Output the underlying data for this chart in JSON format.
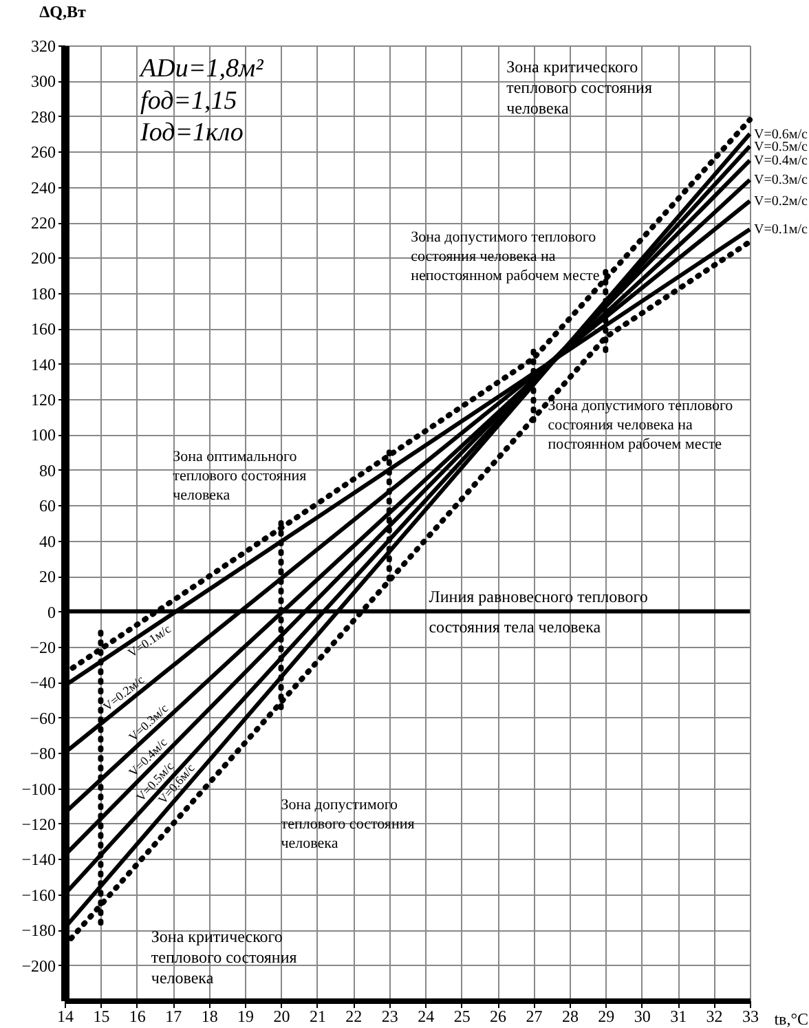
{
  "chart_data": {
    "type": "line",
    "xlabel": "tв,°C",
    "ylabel": "ΔQ,Вт",
    "xlim": [
      14,
      33
    ],
    "xticks": [
      14,
      15,
      16,
      17,
      18,
      19,
      20,
      21,
      22,
      23,
      24,
      25,
      26,
      27,
      28,
      29,
      30,
      31,
      32,
      33
    ],
    "ylim": [
      -220,
      320
    ],
    "yticks": [
      -200,
      -180,
      -160,
      -140,
      -120,
      -100,
      -80,
      -60,
      -40,
      -20,
      0,
      20,
      40,
      60,
      80,
      100,
      120,
      140,
      160,
      180,
      200,
      220,
      240,
      260,
      280,
      300,
      320
    ],
    "grid": true,
    "legend": false,
    "line_style": "solid",
    "series": [
      {
        "name": "V=0.1м/с",
        "color": "#000000",
        "x": [
          14,
          33
        ],
        "values": [
          -42,
          216
        ]
      },
      {
        "name": "V=0.2м/с",
        "color": "#000000",
        "x": [
          14,
          33
        ],
        "values": [
          -80,
          232
        ]
      },
      {
        "name": "V=0.3м/с",
        "color": "#000000",
        "x": [
          14,
          33
        ],
        "values": [
          -114,
          244
        ]
      },
      {
        "name": "V=0.4м/с",
        "color": "#000000",
        "x": [
          14,
          33
        ],
        "values": [
          -138,
          255
        ]
      },
      {
        "name": "V=0.5м/с",
        "color": "#000000",
        "x": [
          14,
          33
        ],
        "values": [
          -160,
          263
        ]
      },
      {
        "name": "V=0.6м/с",
        "color": "#000000",
        "x": [
          14,
          33
        ],
        "values": [
          -179,
          270
        ]
      },
      {
        "color": "#000000",
        "line_style": "dotted",
        "x": [
          14,
          27,
          33
        ],
        "values": [
          -35,
          143,
          278
        ]
      },
      {
        "color": "#000000",
        "line_style": "dotted",
        "x": [
          14,
          29,
          33
        ],
        "values": [
          -189,
          155,
          209
        ]
      },
      {
        "color": "#000000",
        "line_style": "dotted",
        "x": [
          15,
          15
        ],
        "values": [
          -12,
          -180
        ]
      },
      {
        "color": "#000000",
        "line_style": "dotted",
        "x": [
          20,
          20
        ],
        "values": [
          50,
          -55
        ]
      },
      {
        "color": "#000000",
        "line_style": "dotted",
        "x": [
          23,
          23
        ],
        "values": [
          90,
          15
        ]
      },
      {
        "color": "#000000",
        "line_style": "dotted",
        "x": [
          27,
          27
        ],
        "values": [
          147,
          105
        ]
      },
      {
        "color": "#000000",
        "line_style": "dotted",
        "x": [
          29,
          29
        ],
        "values": [
          192,
          144
        ]
      }
    ],
    "ref_lines": [
      {
        "axis": "y",
        "value": 0,
        "label": "Линия равновесного теплового\nсостояния тела человека",
        "color": "#000000"
      }
    ],
    "annotations": [
      "ADu=1,8м²",
      "fод=1,15",
      "Iод=1кло",
      "Зона критического\nтеплового состояния\nчеловека",
      "Зона допустимого теплового\nсостояния человека на\nнепостоянном рабочем месте",
      "Зона допустимого теплового\nсостояния человека на\nпостоянном рабочем месте",
      "Зона оптимального\nтеплового состояния\nчеловека",
      "Зона допустимого\nтеплового состояния\nчеловека",
      "Зона критического\nтеплового состояния\nчеловека"
    ]
  }
}
